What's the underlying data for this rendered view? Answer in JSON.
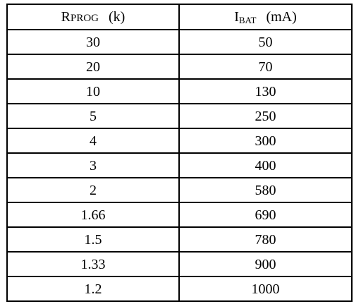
{
  "table": {
    "headers": {
      "col1": {
        "initial": "R",
        "rest": "PROG",
        "unit": "(k)"
      },
      "col2": {
        "initial": "I",
        "subscript": "BAT",
        "unit": "(mA)"
      }
    },
    "rows": [
      [
        "30",
        "50"
      ],
      [
        "20",
        "70"
      ],
      [
        "10",
        "130"
      ],
      [
        "5",
        "250"
      ],
      [
        "4",
        "300"
      ],
      [
        "3",
        "400"
      ],
      [
        "2",
        "580"
      ],
      [
        "1.66",
        "690"
      ],
      [
        "1.5",
        "780"
      ],
      [
        "1.33",
        "900"
      ],
      [
        "1.2",
        "1000"
      ]
    ]
  }
}
